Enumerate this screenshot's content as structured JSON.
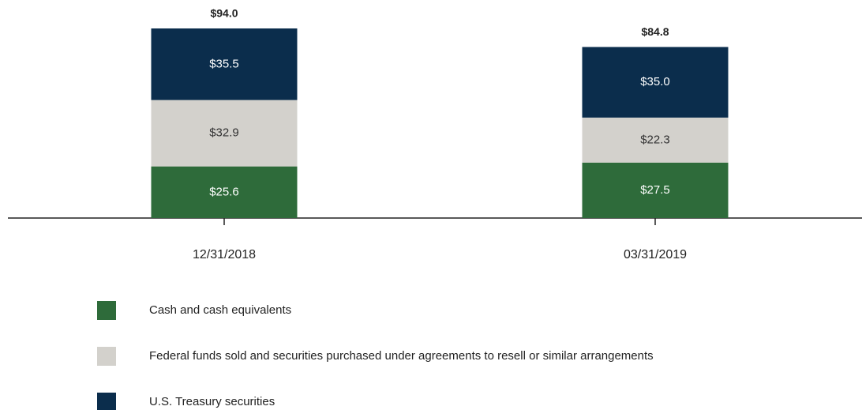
{
  "chart_data": {
    "type": "stacked_bar",
    "categories": [
      "12/31/2018",
      "03/31/2019"
    ],
    "series": [
      {
        "name": "Cash and cash equivalents",
        "color": "#2e6b3a",
        "values": [
          25.6,
          27.5
        ],
        "value_labels": [
          "$25.6",
          "$27.5"
        ]
      },
      {
        "name": "Federal funds sold and securities purchased under agreements to resell or similar arrangements",
        "color": "#d3d1cc",
        "values": [
          32.9,
          22.3
        ],
        "value_labels": [
          "$32.9",
          "$22.3"
        ]
      },
      {
        "name": "U.S. Treasury securities",
        "color": "#0b2d4c",
        "values": [
          35.5,
          35.0
        ],
        "value_labels": [
          "$35.5",
          "$35.0"
        ]
      }
    ],
    "totals": [
      94.0,
      84.8
    ],
    "total_labels": [
      "$94.0",
      "$84.8"
    ]
  }
}
